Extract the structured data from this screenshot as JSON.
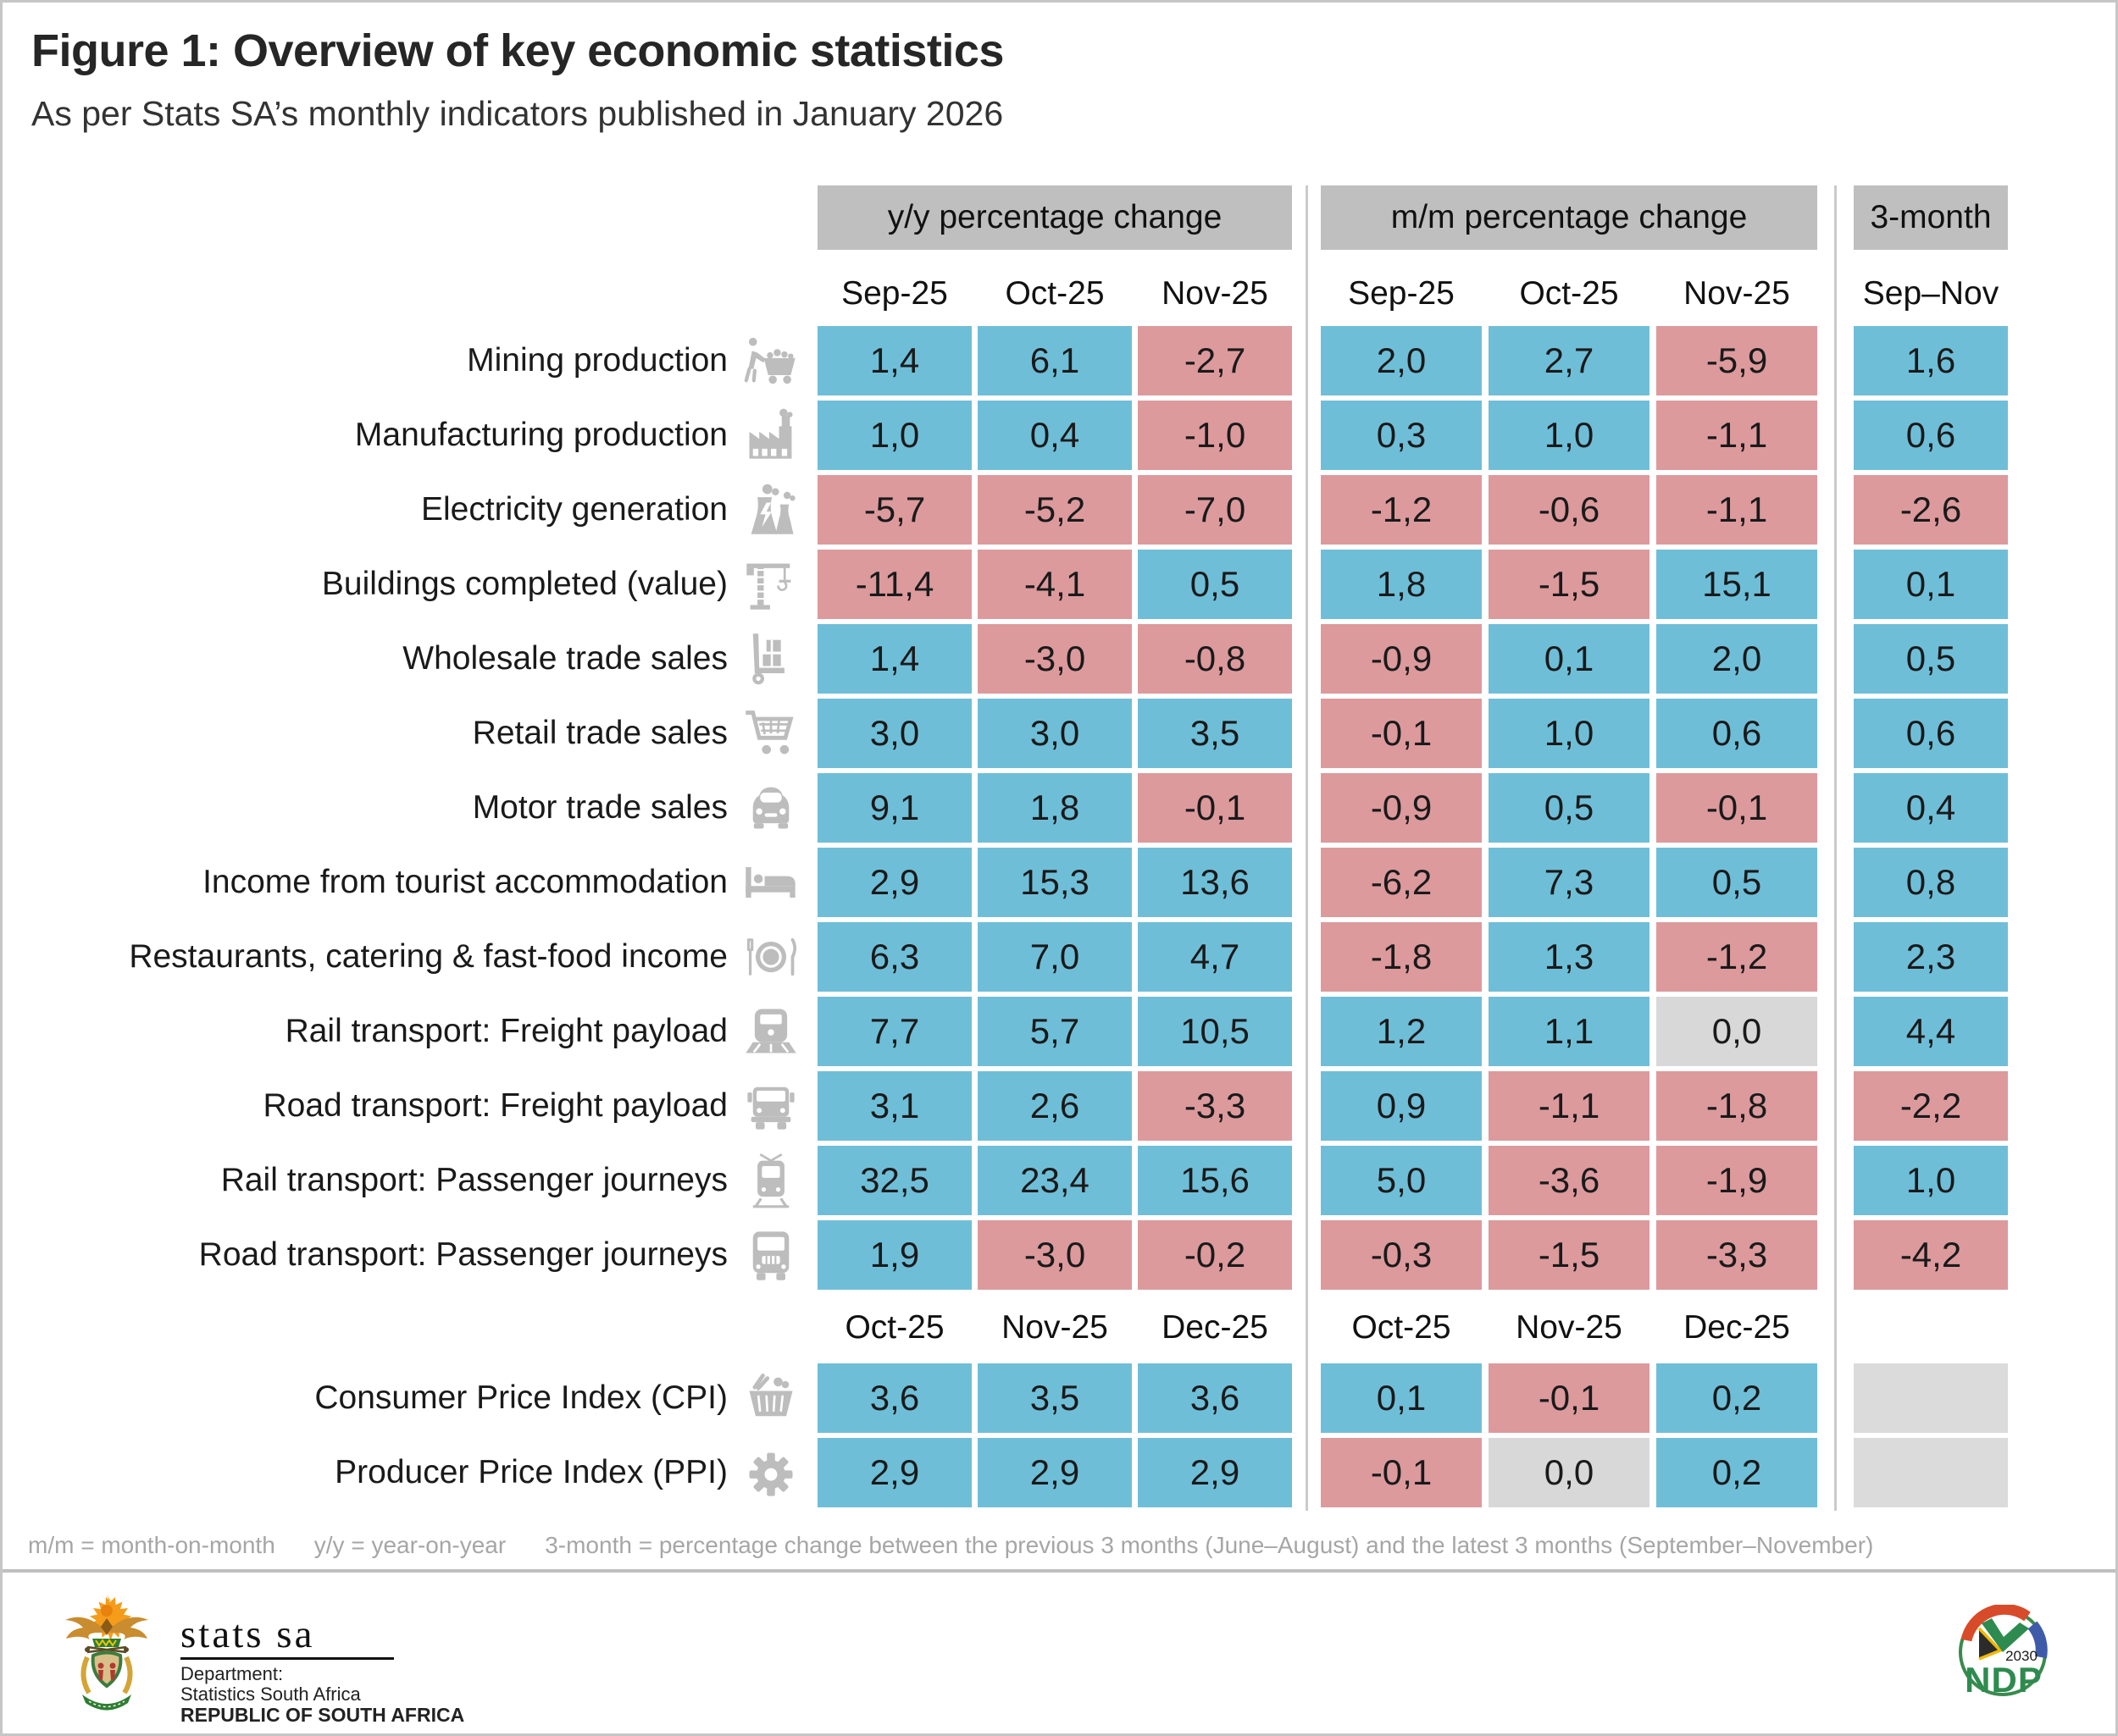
{
  "title": "Figure 1: Overview of key economic statistics",
  "subtitle": "As per Stats SA’s monthly indicators published in January 2026",
  "table": {
    "groups": [
      {
        "id": "yy",
        "label": "y/y percentage change"
      },
      {
        "id": "mm",
        "label": "m/m percentage change"
      },
      {
        "id": "m3",
        "label": "3-month"
      }
    ],
    "months_top": {
      "yy": [
        "Sep-25",
        "Oct-25",
        "Nov-25"
      ],
      "mm": [
        "Sep-25",
        "Oct-25",
        "Nov-25"
      ],
      "m3": "Sep–Nov"
    },
    "rows": [
      {
        "label": "Mining production",
        "icon": "miner-cart-icon",
        "yy": [
          "1,4",
          "6,1",
          "-2,7"
        ],
        "mm": [
          "2,0",
          "2,7",
          "-5,9"
        ],
        "m3": "1,6"
      },
      {
        "label": "Manufacturing production",
        "icon": "factory-icon",
        "yy": [
          "1,0",
          "0,4",
          "-1,0"
        ],
        "mm": [
          "0,3",
          "1,0",
          "-1,1"
        ],
        "m3": "0,6"
      },
      {
        "label": "Electricity generation",
        "icon": "power-plant-icon",
        "yy": [
          "-5,7",
          "-5,2",
          "-7,0"
        ],
        "mm": [
          "-1,2",
          "-0,6",
          "-1,1"
        ],
        "m3": "-2,6"
      },
      {
        "label": "Buildings completed (value)",
        "icon": "crane-icon",
        "yy": [
          "-11,4",
          "-4,1",
          "0,5"
        ],
        "mm": [
          "1,8",
          "-1,5",
          "15,1"
        ],
        "m3": "0,1"
      },
      {
        "label": "Wholesale trade sales",
        "icon": "hand-truck-icon",
        "yy": [
          "1,4",
          "-3,0",
          "-0,8"
        ],
        "mm": [
          "-0,9",
          "0,1",
          "2,0"
        ],
        "m3": "0,5"
      },
      {
        "label": "Retail trade sales",
        "icon": "shopping-cart-icon",
        "yy": [
          "3,0",
          "3,0",
          "3,5"
        ],
        "mm": [
          "-0,1",
          "1,0",
          "0,6"
        ],
        "m3": "0,6"
      },
      {
        "label": "Motor trade sales",
        "icon": "car-icon",
        "yy": [
          "9,1",
          "1,8",
          "-0,1"
        ],
        "mm": [
          "-0,9",
          "0,5",
          "-0,1"
        ],
        "m3": "0,4"
      },
      {
        "label": "Income from tourist accommodation",
        "icon": "bed-icon",
        "yy": [
          "2,9",
          "15,3",
          "13,6"
        ],
        "mm": [
          "-6,2",
          "7,3",
          "0,5"
        ],
        "m3": "0,8"
      },
      {
        "label": "Restaurants, catering & fast-food income",
        "icon": "restaurant-plate-icon",
        "yy": [
          "6,3",
          "7,0",
          "4,7"
        ],
        "mm": [
          "-1,8",
          "1,3",
          "-1,2"
        ],
        "m3": "2,3"
      },
      {
        "label": "Rail transport: Freight payload",
        "icon": "locomotive-icon",
        "yy": [
          "7,7",
          "5,7",
          "10,5"
        ],
        "mm": [
          "1,2",
          "1,1",
          "0,0"
        ],
        "m3": "4,4"
      },
      {
        "label": "Road transport: Freight payload",
        "icon": "truck-icon",
        "yy": [
          "3,1",
          "2,6",
          "-3,3"
        ],
        "mm": [
          "0,9",
          "-1,1",
          "-1,8"
        ],
        "m3": "-2,2"
      },
      {
        "label": "Rail transport: Passenger journeys",
        "icon": "tram-icon",
        "yy": [
          "32,5",
          "23,4",
          "15,6"
        ],
        "mm": [
          "5,0",
          "-3,6",
          "-1,9"
        ],
        "m3": "1,0"
      },
      {
        "label": "Road transport: Passenger journeys",
        "icon": "bus-icon",
        "yy": [
          "1,9",
          "-3,0",
          "-0,2"
        ],
        "mm": [
          "-0,3",
          "-1,5",
          "-3,3"
        ],
        "m3": "-4,2"
      }
    ],
    "months_bottom": {
      "yy": [
        "Oct-25",
        "Nov-25",
        "Dec-25"
      ],
      "mm": [
        "Oct-25",
        "Nov-25",
        "Dec-25"
      ]
    },
    "rows_bottom": [
      {
        "label": "Consumer Price Index (CPI)",
        "icon": "shopping-basket-icon",
        "yy": [
          "3,6",
          "3,5",
          "3,6"
        ],
        "mm": [
          "0,1",
          "-0,1",
          "0,2"
        ],
        "m3": null
      },
      {
        "label": "Producer Price Index (PPI)",
        "icon": "gear-icon",
        "yy": [
          "2,9",
          "2,9",
          "2,9"
        ],
        "mm": [
          "-0,1",
          "0,0",
          "0,2"
        ],
        "m3": null
      }
    ]
  },
  "legend": {
    "parts": [
      "m/m = month-on-month",
      "y/y = year-on-year",
      "3-month = percentage change between the previous 3 months (June–August) and the latest 3 months (September–November)"
    ]
  },
  "footer": {
    "stats_sa": {
      "brand": "stats sa",
      "dept_line1": "Department:",
      "dept_line2": "Statistics South Africa",
      "dept_line3": "REPUBLIC OF SOUTH AFRICA"
    },
    "ndp": {
      "acronym": "NDP",
      "year": "2030"
    }
  },
  "colors": {
    "positive_cell": "#6FBED8",
    "negative_cell": "#DC9A9D",
    "zero_cell": "#D8D8D8",
    "empty_cell": "#DBDBDB",
    "header_band": "#BFBFBF",
    "icon_gray": "#BDBDBD",
    "footnote_gray": "#A6A6A6"
  },
  "chart_data": {
    "type": "table",
    "title": "Figure 1: Overview of key economic statistics",
    "subtitle": "As per Stats SA’s monthly indicators published in January 2026",
    "column_groups": [
      "y/y percentage change",
      "m/m percentage change",
      "3-month"
    ],
    "columns_top": [
      "y/y Sep-25",
      "y/y Oct-25",
      "y/y Nov-25",
      "m/m Sep-25",
      "m/m Oct-25",
      "m/m Nov-25",
      "3-month Sep–Nov"
    ],
    "rows": [
      {
        "indicator": "Mining production",
        "values": [
          1.4,
          6.1,
          -2.7,
          2.0,
          2.7,
          -5.9,
          1.6
        ]
      },
      {
        "indicator": "Manufacturing production",
        "values": [
          1.0,
          0.4,
          -1.0,
          0.3,
          1.0,
          -1.1,
          0.6
        ]
      },
      {
        "indicator": "Electricity generation",
        "values": [
          -5.7,
          -5.2,
          -7.0,
          -1.2,
          -0.6,
          -1.1,
          -2.6
        ]
      },
      {
        "indicator": "Buildings completed (value)",
        "values": [
          -11.4,
          -4.1,
          0.5,
          1.8,
          -1.5,
          15.1,
          0.1
        ]
      },
      {
        "indicator": "Wholesale trade sales",
        "values": [
          1.4,
          -3.0,
          -0.8,
          -0.9,
          0.1,
          2.0,
          0.5
        ]
      },
      {
        "indicator": "Retail trade sales",
        "values": [
          3.0,
          3.0,
          3.5,
          -0.1,
          1.0,
          0.6,
          0.6
        ]
      },
      {
        "indicator": "Motor trade sales",
        "values": [
          9.1,
          1.8,
          -0.1,
          -0.9,
          0.5,
          -0.1,
          0.4
        ]
      },
      {
        "indicator": "Income from tourist accommodation",
        "values": [
          2.9,
          15.3,
          13.6,
          -6.2,
          7.3,
          0.5,
          0.8
        ]
      },
      {
        "indicator": "Restaurants, catering & fast-food income",
        "values": [
          6.3,
          7.0,
          4.7,
          -1.8,
          1.3,
          -1.2,
          2.3
        ]
      },
      {
        "indicator": "Rail transport: Freight payload",
        "values": [
          7.7,
          5.7,
          10.5,
          1.2,
          1.1,
          0.0,
          4.4
        ]
      },
      {
        "indicator": "Road transport: Freight payload",
        "values": [
          3.1,
          2.6,
          -3.3,
          0.9,
          -1.1,
          -1.8,
          -2.2
        ]
      },
      {
        "indicator": "Rail transport: Passenger journeys",
        "values": [
          32.5,
          23.4,
          15.6,
          5.0,
          -3.6,
          -1.9,
          1.0
        ]
      },
      {
        "indicator": "Road transport: Passenger journeys",
        "values": [
          1.9,
          -3.0,
          -0.2,
          -0.3,
          -1.5,
          -3.3,
          -4.2
        ]
      }
    ],
    "columns_bottom": [
      "y/y Oct-25",
      "y/y Nov-25",
      "y/y Dec-25",
      "m/m Oct-25",
      "m/m Nov-25",
      "m/m Dec-25"
    ],
    "rows_bottom": [
      {
        "indicator": "Consumer Price Index (CPI)",
        "values": [
          3.6,
          3.5,
          3.6,
          0.1,
          -0.1,
          0.2
        ]
      },
      {
        "indicator": "Producer Price Index (PPI)",
        "values": [
          2.9,
          2.9,
          2.9,
          -0.1,
          0.0,
          0.2
        ]
      }
    ],
    "color_coding": "positive = blue, negative = salmon, zero = gray"
  }
}
